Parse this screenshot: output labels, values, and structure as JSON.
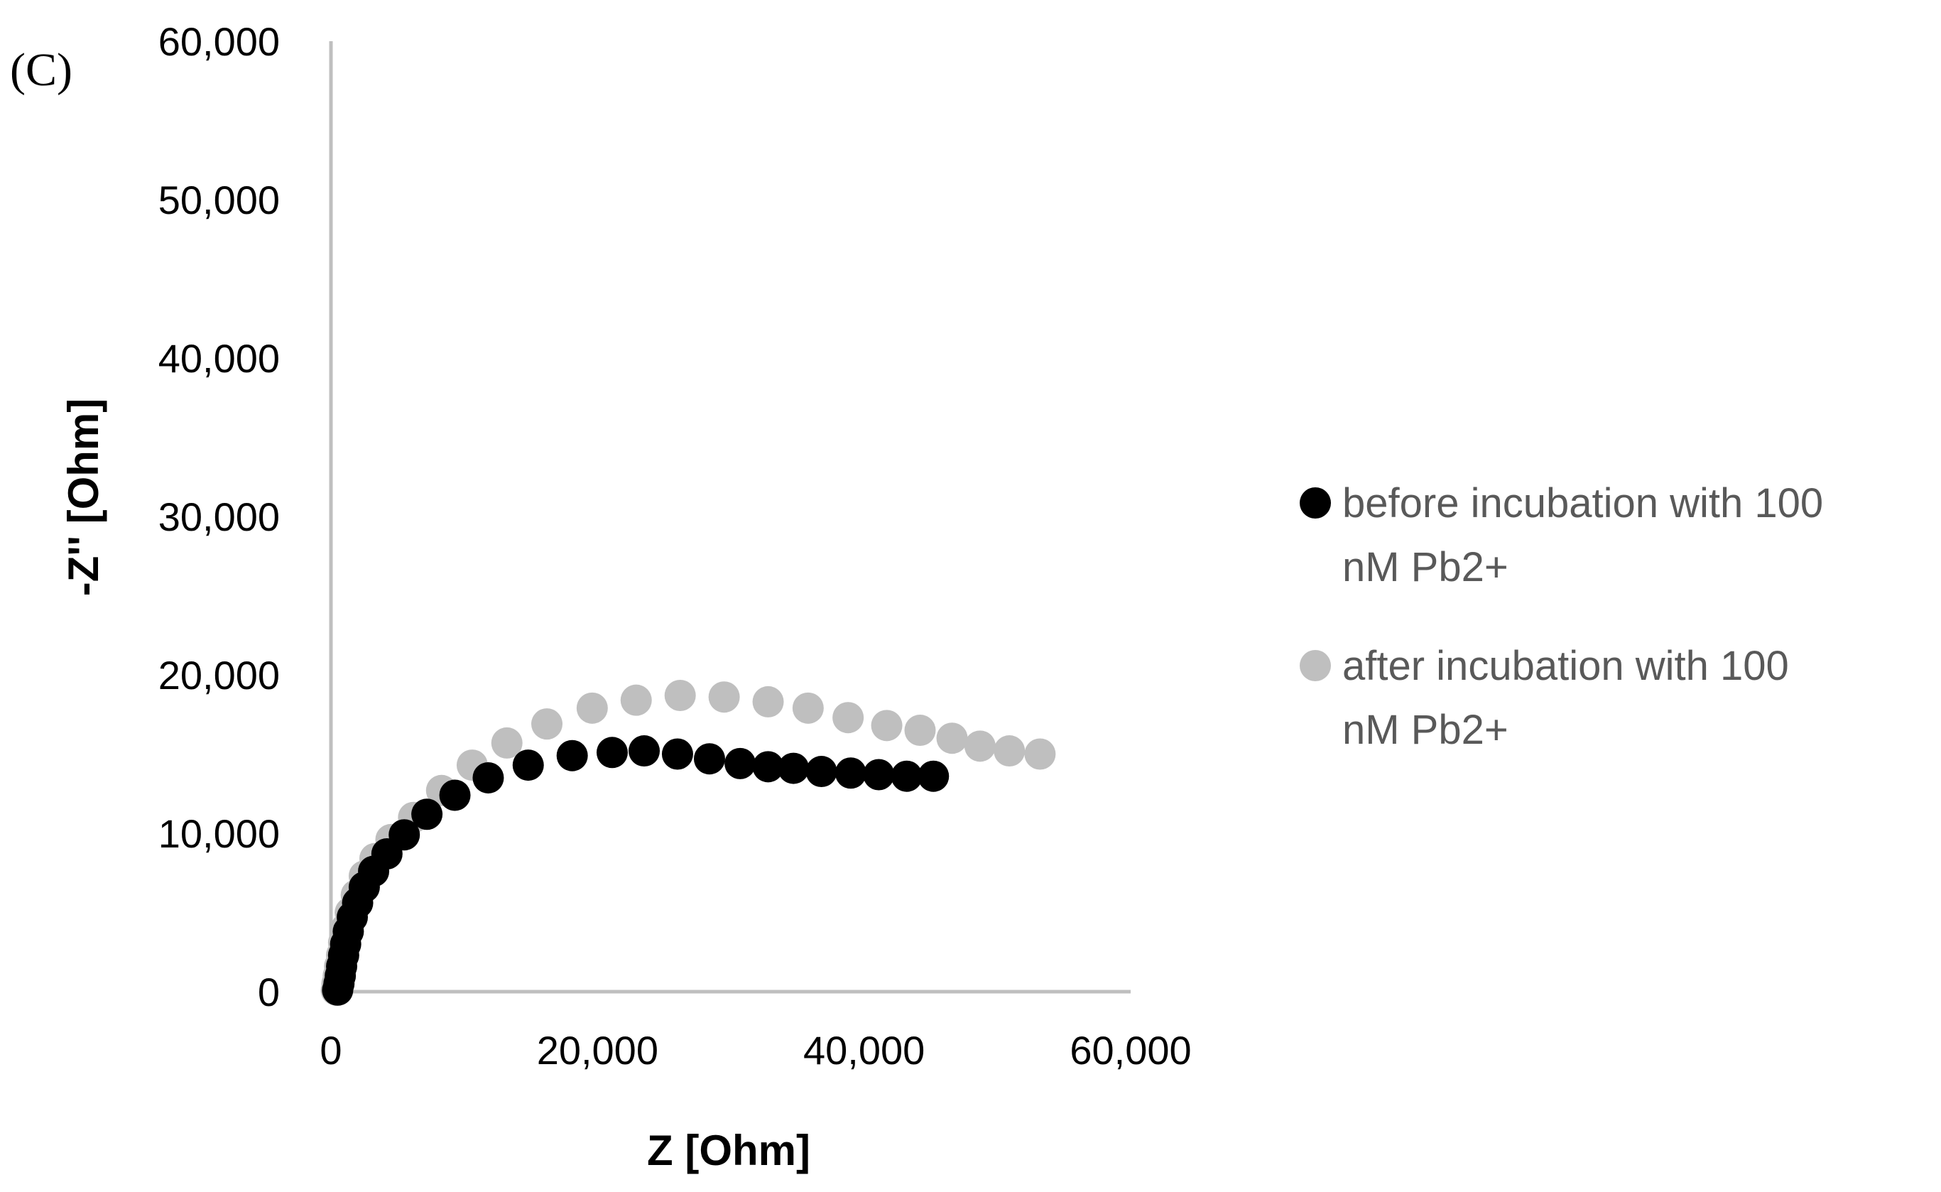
{
  "panel_label": "(C)",
  "colors": {
    "axis": "#bfbfbf",
    "before": "#000000",
    "after": "#bfbfbf",
    "legend_text": "#595959"
  },
  "chart_data": {
    "type": "scatter",
    "xlabel": "Z [Ohm]",
    "ylabel": "-Z'' [Ohm]",
    "xlim": [
      0,
      60000
    ],
    "ylim": [
      0,
      60000
    ],
    "x_ticks": [
      0,
      20000,
      40000,
      60000
    ],
    "y_ticks": [
      0,
      10000,
      20000,
      30000,
      40000,
      50000,
      60000
    ],
    "x_tick_labels": [
      "0",
      "20,000",
      "40,000",
      "60,000"
    ],
    "y_tick_labels": [
      "0",
      "10,000",
      "20,000",
      "30,000",
      "40,000",
      "50,000",
      "60,000"
    ],
    "grid": false,
    "legend_position": "right",
    "series": [
      {
        "name": "before incubation with 100 nM Pb2+",
        "legend_lines": [
          "before incubation with 100",
          "nM Pb2+"
        ],
        "color": "#000000",
        "points": [
          [
            500,
            100
          ],
          [
            600,
            500
          ],
          [
            700,
            1000
          ],
          [
            800,
            1600
          ],
          [
            950,
            2300
          ],
          [
            1100,
            3000
          ],
          [
            1300,
            3800
          ],
          [
            1600,
            4700
          ],
          [
            2000,
            5600
          ],
          [
            2500,
            6600
          ],
          [
            3200,
            7600
          ],
          [
            4200,
            8700
          ],
          [
            5500,
            9900
          ],
          [
            7200,
            11200
          ],
          [
            9300,
            12400
          ],
          [
            11800,
            13500
          ],
          [
            14800,
            14300
          ],
          [
            18100,
            14900
          ],
          [
            21100,
            15100
          ],
          [
            23500,
            15200
          ],
          [
            26000,
            15000
          ],
          [
            28400,
            14700
          ],
          [
            30700,
            14400
          ],
          [
            32800,
            14200
          ],
          [
            34700,
            14100
          ],
          [
            36800,
            13900
          ],
          [
            39000,
            13800
          ],
          [
            41100,
            13700
          ],
          [
            43200,
            13600
          ],
          [
            45200,
            13600
          ]
        ]
      },
      {
        "name": "after incubation with 100 nM Pb2+",
        "legend_lines": [
          "after incubation with 100",
          "nM Pb2+"
        ],
        "color": "#bfbfbf",
        "points": [
          [
            400,
            100
          ],
          [
            450,
            500
          ],
          [
            550,
            1000
          ],
          [
            650,
            1600
          ],
          [
            800,
            2300
          ],
          [
            950,
            3100
          ],
          [
            1150,
            4000
          ],
          [
            1450,
            5000
          ],
          [
            1900,
            6100
          ],
          [
            2500,
            7300
          ],
          [
            3300,
            8400
          ],
          [
            4500,
            9600
          ],
          [
            6200,
            11000
          ],
          [
            8300,
            12700
          ],
          [
            10600,
            14300
          ],
          [
            13200,
            15700
          ],
          [
            16200,
            16900
          ],
          [
            19600,
            17900
          ],
          [
            22900,
            18400
          ],
          [
            26200,
            18700
          ],
          [
            29500,
            18600
          ],
          [
            32800,
            18300
          ],
          [
            35800,
            17900
          ],
          [
            38800,
            17300
          ],
          [
            41700,
            16800
          ],
          [
            44200,
            16500
          ],
          [
            46600,
            16000
          ],
          [
            48700,
            15500
          ],
          [
            50900,
            15200
          ],
          [
            53200,
            15000
          ]
        ]
      }
    ]
  }
}
